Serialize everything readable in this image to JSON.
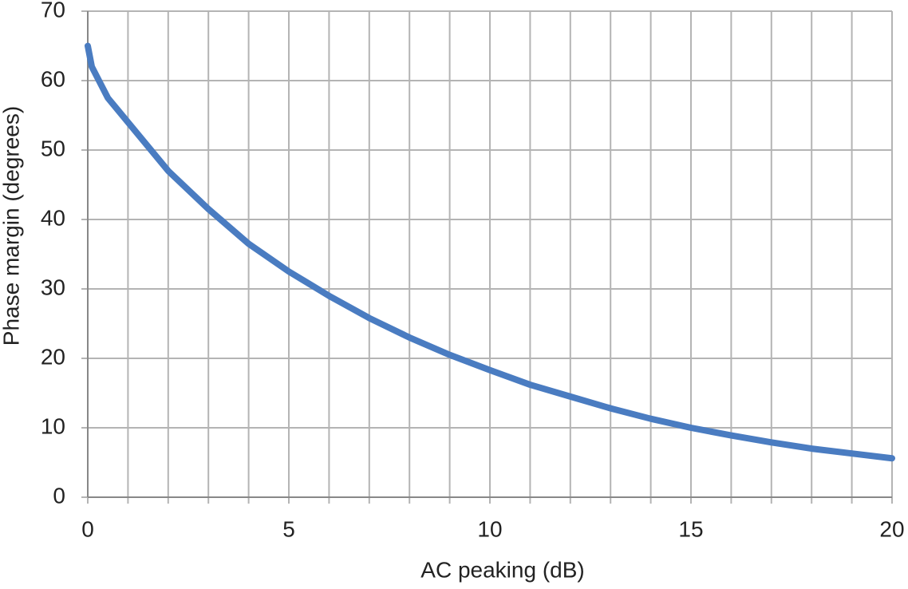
{
  "chart_data": {
    "type": "line",
    "x_label": "AC peaking (dB)",
    "y_label": "Phase margin (degrees)",
    "x": [
      0,
      0.1,
      0.5,
      1,
      2,
      3,
      4,
      5,
      6,
      7,
      8,
      9,
      10,
      11,
      12,
      13,
      14,
      15,
      16,
      17,
      18,
      19,
      20
    ],
    "series": [
      {
        "color": "#4a7cc1",
        "values": [
          65,
          62,
          57.5,
          54,
          47,
          41.5,
          36.5,
          32.5,
          29,
          25.8,
          23,
          20.5,
          18.3,
          16.2,
          14.5,
          12.8,
          11.3,
          10,
          8.9,
          7.9,
          7,
          6.3,
          5.6
        ]
      }
    ],
    "xlim": [
      0,
      20
    ],
    "xticks": [
      0,
      5,
      10,
      15,
      20
    ],
    "xminorticks": [
      1,
      2,
      3,
      4,
      6,
      7,
      8,
      9,
      11,
      12,
      13,
      14,
      16,
      17,
      18,
      19
    ],
    "ylim": [
      0,
      70
    ],
    "yticks": [
      0,
      10,
      20,
      30,
      40,
      50,
      60,
      70
    ],
    "grid": true
  }
}
